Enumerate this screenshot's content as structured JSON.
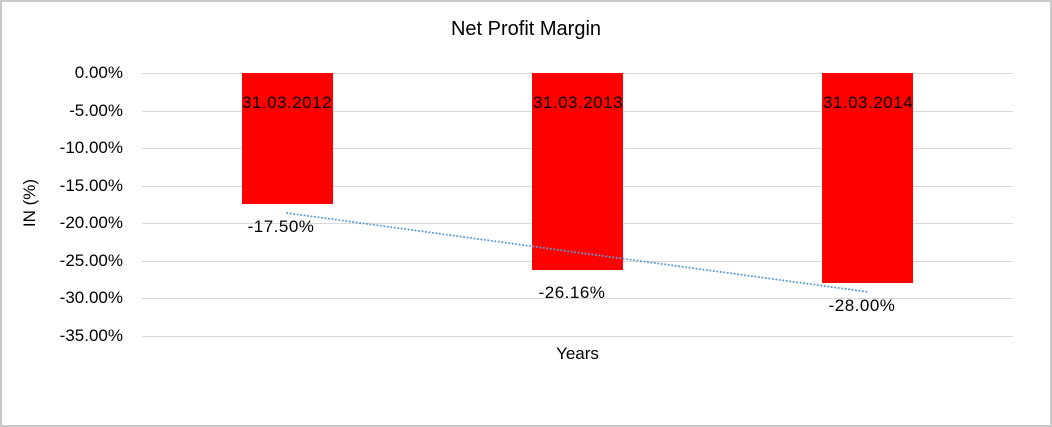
{
  "chart_data": {
    "type": "bar",
    "title": "Net Profit Margin",
    "xlabel": "Years",
    "ylabel": "IN (%)",
    "categories": [
      "31.03.2012",
      "31.03.2013",
      "31.03.2014"
    ],
    "values": [
      -17.5,
      -26.16,
      -28.0
    ],
    "value_labels": [
      "-17.50%",
      "-26.16%",
      "-28.00%"
    ],
    "yticks": [
      {
        "value": 0,
        "label": "0.00%"
      },
      {
        "value": -5,
        "label": "-5.00%"
      },
      {
        "value": -10,
        "label": "-10.00%"
      },
      {
        "value": -15,
        "label": "-15.00%"
      },
      {
        "value": -20,
        "label": "-20.00%"
      },
      {
        "value": -25,
        "label": "-25.00%"
      },
      {
        "value": -30,
        "label": "-30.00%"
      },
      {
        "value": -35,
        "label": "-35.00%"
      }
    ],
    "ylim": [
      -35,
      0
    ],
    "bar_color": "#ff0000",
    "gridline_color": "#d9d9d9",
    "trendline": {
      "type": "linear",
      "style": "dotted",
      "color": "#5b9bd5"
    },
    "legend": "none",
    "grid": "horizontal"
  }
}
